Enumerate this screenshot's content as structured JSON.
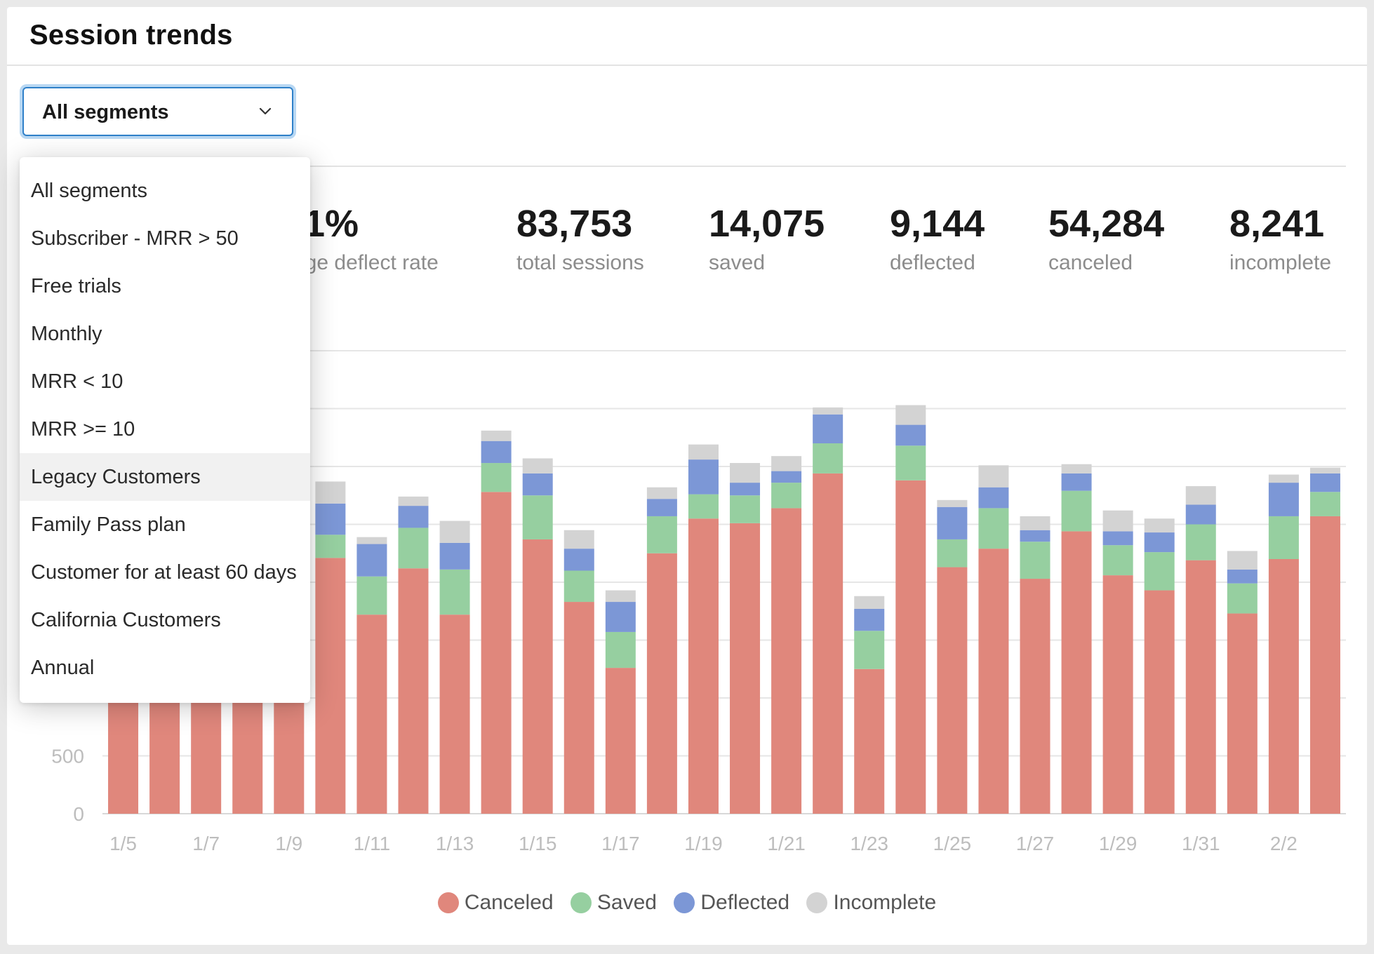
{
  "header": {
    "title": "Session trends"
  },
  "segment_select": {
    "value": "All segments",
    "options": [
      "All segments",
      "Subscriber - MRR > 50",
      "Free trials",
      "Monthly",
      "MRR < 10",
      "MRR >= 10",
      "Legacy Customers",
      "Family Pass plan",
      "Customer for at least 60 days",
      "California Customers",
      "Annual"
    ],
    "highlighted_option": "Legacy Customers"
  },
  "stats": [
    {
      "value": ".1%",
      "label": "age deflect rate"
    },
    {
      "value": "83,753",
      "label": "total sessions"
    },
    {
      "value": "14,075",
      "label": "saved"
    },
    {
      "value": "9,144",
      "label": "deflected"
    },
    {
      "value": "54,284",
      "label": "canceled"
    },
    {
      "value": "8,241",
      "label": "incomplete"
    }
  ],
  "colors": {
    "canceled": "#e0877c",
    "saved": "#96cfa0",
    "deflected": "#7c97d6",
    "incomplete": "#d3d3d3",
    "grid": "#e6e6e6",
    "axis_text": "#bdbdbd",
    "accent": "#2f80c9"
  },
  "legend": [
    {
      "label": "Canceled",
      "color": "#e0877c"
    },
    {
      "label": "Saved",
      "color": "#96cfa0"
    },
    {
      "label": "Deflected",
      "color": "#7c97d6"
    },
    {
      "label": "Incomplete",
      "color": "#d3d3d3"
    }
  ],
  "chart_data": {
    "type": "bar",
    "stacked": true,
    "title": "",
    "xlabel": "",
    "ylabel": "",
    "ylim": [
      0,
      4000
    ],
    "yticks": [
      0,
      500
    ],
    "grid": true,
    "legend_position": "bottom",
    "categories": [
      "1/5",
      "1/6",
      "1/7",
      "1/8",
      "1/9",
      "1/10",
      "1/11",
      "1/12",
      "1/13",
      "1/14",
      "1/15",
      "1/16",
      "1/17",
      "1/18",
      "1/19",
      "1/20",
      "1/21",
      "1/22",
      "1/23",
      "1/24",
      "1/25",
      "1/26",
      "1/27",
      "1/28",
      "1/29",
      "1/30",
      "1/31",
      "2/1",
      "2/2",
      "2/3"
    ],
    "xtick_labels": [
      "1/5",
      "1/7",
      "1/9",
      "1/11",
      "1/13",
      "1/15",
      "1/17",
      "1/19",
      "1/21",
      "1/23",
      "1/25",
      "1/27",
      "1/29",
      "1/31",
      "2/2"
    ],
    "series": [
      {
        "name": "Canceled",
        "values": [
          2300,
          2300,
          2300,
          2300,
          2300,
          2210,
          1720,
          2120,
          1720,
          2780,
          2370,
          1830,
          1260,
          2250,
          2550,
          2510,
          2640,
          2940,
          1250,
          2880,
          2130,
          2290,
          2030,
          2440,
          2060,
          1930,
          2190,
          1730,
          2200,
          2570
        ]
      },
      {
        "name": "Saved",
        "values": [
          250,
          250,
          250,
          250,
          250,
          200,
          330,
          350,
          390,
          250,
          380,
          270,
          310,
          320,
          210,
          240,
          220,
          260,
          330,
          300,
          240,
          350,
          320,
          350,
          260,
          330,
          310,
          260,
          370,
          210
        ]
      },
      {
        "name": "Deflected",
        "values": [
          150,
          150,
          150,
          150,
          150,
          270,
          280,
          190,
          230,
          190,
          190,
          190,
          260,
          150,
          300,
          110,
          100,
          250,
          190,
          180,
          280,
          180,
          100,
          150,
          120,
          170,
          170,
          120,
          290,
          160
        ]
      },
      {
        "name": "Incomplete",
        "values": [
          120,
          120,
          120,
          120,
          120,
          190,
          60,
          80,
          190,
          90,
          130,
          160,
          100,
          100,
          130,
          170,
          130,
          60,
          110,
          170,
          60,
          190,
          120,
          80,
          180,
          120,
          160,
          160,
          70,
          50
        ]
      }
    ]
  }
}
